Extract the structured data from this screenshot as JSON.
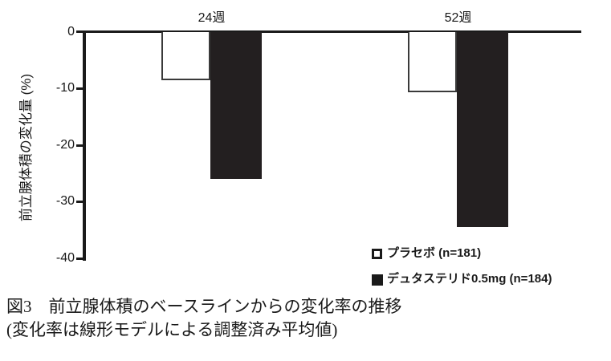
{
  "chart_data": {
    "type": "bar",
    "title": "",
    "categories": [
      "24週",
      "52週"
    ],
    "series": [
      {
        "name": "プラセボ (n=181)",
        "values": [
          -8.5,
          -10.6
        ]
      },
      {
        "name": "デュタステリド0.5mg (n=184)",
        "values": [
          -25.9,
          -34.3
        ]
      }
    ],
    "ylabel": "前立腺体積の変化量 (%)",
    "ylim": [
      0,
      -40
    ],
    "yticks": [
      0,
      -10,
      -20,
      -30,
      -40
    ],
    "grid": false,
    "legend_position": "bottom-right",
    "bar_direction": "downward-from-zero-line"
  },
  "legend": {
    "items": [
      {
        "label": "プラセボ (n=181)",
        "swatch": "outline"
      },
      {
        "label": "デュタステリド0.5mg (n=184)",
        "swatch": "filled"
      }
    ]
  },
  "caption": {
    "line1": "図3　前立腺体積のベースラインからの変化率の推移",
    "line2": "(変化率は線形モデルによる調整済み平均値)"
  },
  "colors": {
    "bar_fill_dutasteride": "#231f20",
    "bar_fill_placebo": "#ffffff",
    "bar_border_placebo": "#3a3a3a",
    "axis": "#1a1a1a",
    "background": "#ffffff"
  }
}
